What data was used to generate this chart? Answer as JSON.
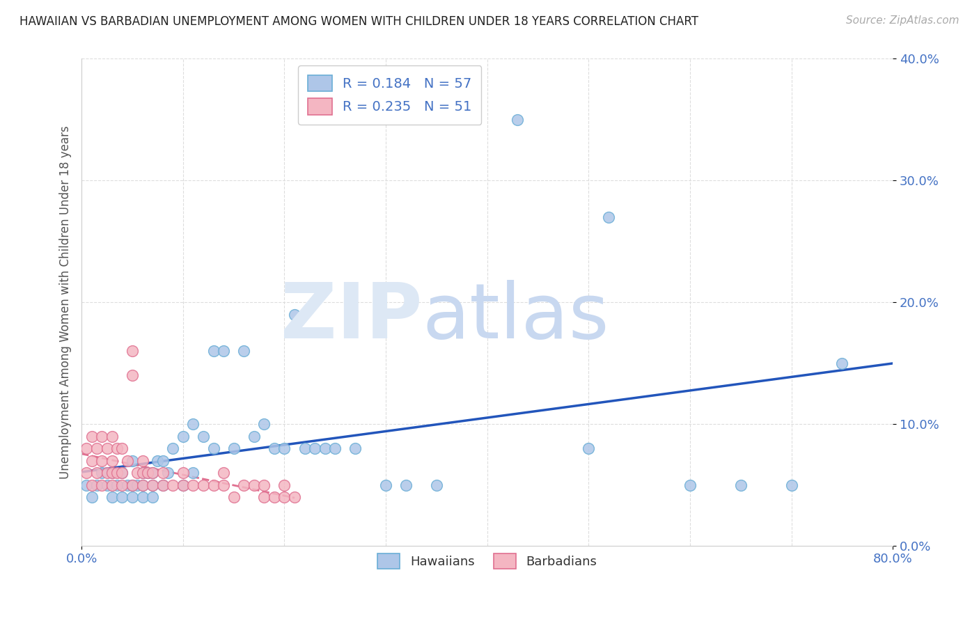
{
  "title": "HAWAIIAN VS BARBADIAN UNEMPLOYMENT AMONG WOMEN WITH CHILDREN UNDER 18 YEARS CORRELATION CHART",
  "source": "Source: ZipAtlas.com",
  "ylabel": "Unemployment Among Women with Children Under 18 years",
  "xlim": [
    0.0,
    0.8
  ],
  "ylim": [
    0.0,
    0.4
  ],
  "xticks": [
    0.0,
    0.8
  ],
  "yticks": [
    0.0,
    0.1,
    0.2,
    0.3,
    0.4
  ],
  "grid_yticks": [
    0.1,
    0.2,
    0.3,
    0.4
  ],
  "grid_xticks": [
    0.1,
    0.2,
    0.3,
    0.4,
    0.5,
    0.6,
    0.7
  ],
  "hawaii_color": "#aec6e8",
  "hawaii_edge": "#6aaed6",
  "barbadian_color": "#f4b6c2",
  "barbadian_edge": "#e07090",
  "trendline_hawaii_color": "#2255bb",
  "trendline_barbadian_color": "#e07090",
  "hawaii_R": 0.184,
  "hawaii_N": 57,
  "barbadian_R": 0.235,
  "barbadian_N": 51,
  "background_color": "#ffffff",
  "grid_color": "#dddddd",
  "hawaii_x": [
    0.005,
    0.01,
    0.015,
    0.02,
    0.025,
    0.03,
    0.03,
    0.035,
    0.04,
    0.04,
    0.045,
    0.05,
    0.05,
    0.05,
    0.055,
    0.06,
    0.06,
    0.06,
    0.065,
    0.07,
    0.07,
    0.07,
    0.075,
    0.08,
    0.08,
    0.085,
    0.09,
    0.1,
    0.1,
    0.11,
    0.11,
    0.12,
    0.13,
    0.13,
    0.14,
    0.15,
    0.16,
    0.17,
    0.18,
    0.19,
    0.2,
    0.21,
    0.22,
    0.23,
    0.24,
    0.25,
    0.27,
    0.3,
    0.32,
    0.35,
    0.43,
    0.5,
    0.52,
    0.6,
    0.65,
    0.7,
    0.75
  ],
  "hawaii_y": [
    0.05,
    0.04,
    0.05,
    0.06,
    0.05,
    0.04,
    0.06,
    0.05,
    0.04,
    0.06,
    0.05,
    0.04,
    0.05,
    0.07,
    0.05,
    0.04,
    0.05,
    0.06,
    0.06,
    0.04,
    0.05,
    0.06,
    0.07,
    0.05,
    0.07,
    0.06,
    0.08,
    0.05,
    0.09,
    0.06,
    0.1,
    0.09,
    0.16,
    0.08,
    0.16,
    0.08,
    0.16,
    0.09,
    0.1,
    0.08,
    0.08,
    0.19,
    0.08,
    0.08,
    0.08,
    0.08,
    0.08,
    0.05,
    0.05,
    0.05,
    0.35,
    0.08,
    0.27,
    0.05,
    0.05,
    0.05,
    0.15
  ],
  "barbadian_x": [
    0.005,
    0.005,
    0.01,
    0.01,
    0.01,
    0.015,
    0.015,
    0.02,
    0.02,
    0.02,
    0.025,
    0.025,
    0.03,
    0.03,
    0.03,
    0.03,
    0.035,
    0.035,
    0.04,
    0.04,
    0.04,
    0.045,
    0.05,
    0.05,
    0.05,
    0.055,
    0.06,
    0.06,
    0.06,
    0.065,
    0.07,
    0.07,
    0.08,
    0.08,
    0.09,
    0.1,
    0.1,
    0.11,
    0.12,
    0.13,
    0.14,
    0.14,
    0.15,
    0.16,
    0.17,
    0.18,
    0.18,
    0.19,
    0.2,
    0.2,
    0.21
  ],
  "barbadian_y": [
    0.06,
    0.08,
    0.05,
    0.07,
    0.09,
    0.06,
    0.08,
    0.05,
    0.07,
    0.09,
    0.06,
    0.08,
    0.05,
    0.06,
    0.07,
    0.09,
    0.06,
    0.08,
    0.05,
    0.06,
    0.08,
    0.07,
    0.05,
    0.14,
    0.16,
    0.06,
    0.05,
    0.06,
    0.07,
    0.06,
    0.05,
    0.06,
    0.05,
    0.06,
    0.05,
    0.05,
    0.06,
    0.05,
    0.05,
    0.05,
    0.05,
    0.06,
    0.04,
    0.05,
    0.05,
    0.04,
    0.05,
    0.04,
    0.04,
    0.05,
    0.04
  ]
}
